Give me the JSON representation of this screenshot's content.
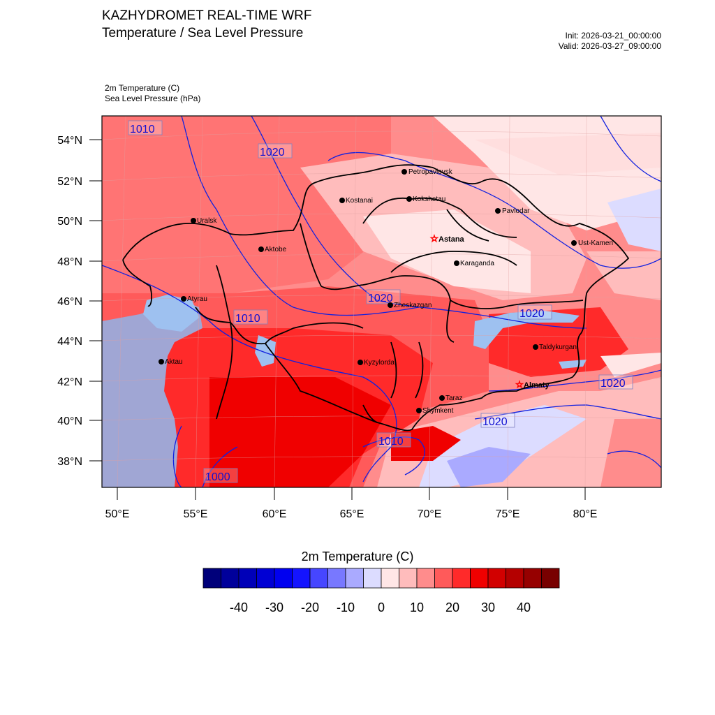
{
  "header": {
    "title": "KAZHYDROMET REAL-TIME WRF",
    "subtitle": "Temperature / Sea Level Pressure",
    "init": "Init: 2026-03-21_00:00:00",
    "valid": "Valid: 2026-03-27_09:00:00",
    "var1": "2m Temperature   (C)",
    "var2": "Sea Level Pressure   (hPa)"
  },
  "map": {
    "lat_ticks": [
      "54°N",
      "52°N",
      "50°N",
      "48°N",
      "46°N",
      "44°N",
      "42°N",
      "40°N",
      "38°N"
    ],
    "lon_ticks": [
      "50°E",
      "55°E",
      "60°E",
      "65°E",
      "70°E",
      "75°E",
      "80°E"
    ],
    "cities": [
      {
        "name": "Petropavlovsk"
      },
      {
        "name": "Kostanai"
      },
      {
        "name": "Kokshetau"
      },
      {
        "name": "Pavlodar"
      },
      {
        "name": "Uralsk"
      },
      {
        "name": "Astana",
        "capital": true
      },
      {
        "name": "Ust-Kamen"
      },
      {
        "name": "Aktobe"
      },
      {
        "name": "Karaganda"
      },
      {
        "name": "Atyrau"
      },
      {
        "name": "Zheskazgan"
      },
      {
        "name": "Taldykurgan"
      },
      {
        "name": "Aktau"
      },
      {
        "name": "Kyzylorda"
      },
      {
        "name": "Almaty",
        "capital": true
      },
      {
        "name": "Taraz"
      },
      {
        "name": "Shymkent"
      }
    ],
    "isobar_labels": [
      "1010",
      "1020",
      "1020",
      "1010",
      "1020",
      "1020",
      "1020",
      "1010",
      "1000"
    ]
  },
  "colorbar": {
    "title": "2m Temperature  (C)",
    "labels": [
      "-40",
      "-30",
      "-20",
      "-10",
      "0",
      "10",
      "20",
      "30",
      "40"
    ],
    "colors": [
      "#00007a",
      "#00009b",
      "#0000b8",
      "#0000d4",
      "#0000f0",
      "#1414ff",
      "#4646ff",
      "#7878ff",
      "#aaaaff",
      "#dcdcff",
      "#ffe6e6",
      "#ffbcbc",
      "#ff8c8c",
      "#ff5a5a",
      "#ff2a2a",
      "#f00000",
      "#d20000",
      "#b40000",
      "#960000",
      "#780000"
    ]
  }
}
